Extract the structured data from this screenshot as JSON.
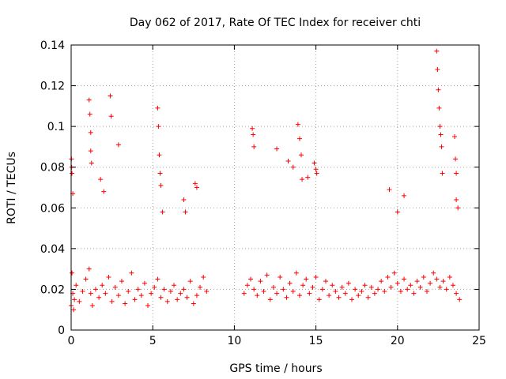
{
  "chart_data": {
    "type": "scatter",
    "title": "Day 062 of 2017, Rate Of TEC Index for receiver chti",
    "xlabel": "GPS time / hours",
    "ylabel": "ROTI / TECUs",
    "xlim": [
      0,
      25
    ],
    "ylim": [
      0,
      0.14
    ],
    "x_ticks": [
      "0",
      "5",
      "10",
      "15",
      "20",
      "25"
    ],
    "y_ticks": [
      "0",
      "0.02",
      "0.04",
      "0.06",
      "0.08",
      "0.1",
      "0.12",
      "0.14"
    ],
    "x_tick_values": [
      0,
      5,
      10,
      15,
      20,
      25
    ],
    "y_tick_values": [
      0,
      0.02,
      0.04,
      0.06,
      0.08,
      0.1,
      0.12,
      0.14
    ],
    "grid": true,
    "marker": "+",
    "color": "#ff0000",
    "series": [
      {
        "x": [
          0.0,
          0.05,
          0.1,
          0.15,
          0.2,
          0.3,
          0.5,
          0.7,
          0.9,
          1.1,
          1.2,
          1.3,
          1.5,
          1.7,
          1.9,
          2.1,
          2.3,
          2.5,
          2.7,
          2.9,
          3.1,
          3.3,
          3.5,
          3.7,
          3.9,
          4.1,
          4.3,
          4.5,
          4.7,
          4.9,
          5.1,
          5.3,
          5.5,
          5.7,
          5.9,
          6.1,
          6.3,
          6.5,
          6.7,
          6.9,
          7.1,
          7.3,
          7.5,
          7.7,
          7.9,
          8.1,
          8.3,
          10.6,
          10.8,
          11.0,
          11.2,
          11.4,
          11.6,
          11.8,
          12.0,
          12.2,
          12.4,
          12.6,
          12.8,
          13.0,
          13.2,
          13.4,
          13.6,
          13.8,
          14.0,
          14.2,
          14.4,
          14.6,
          14.8,
          15.0,
          15.2,
          15.4,
          15.6,
          15.8,
          16.0,
          16.2,
          16.4,
          16.6,
          16.8,
          17.0,
          17.2,
          17.4,
          17.6,
          17.8,
          18.0,
          18.2,
          18.4,
          18.6,
          18.8,
          19.0,
          19.2,
          19.4,
          19.6,
          19.8,
          20.0,
          20.2,
          20.4,
          20.6,
          20.8,
          21.0,
          21.2,
          21.4,
          21.6,
          21.8,
          22.0,
          22.2,
          22.4,
          22.6,
          22.8,
          23.0,
          23.2,
          23.4,
          23.6,
          23.8
        ],
        "y": [
          0.012,
          0.028,
          0.018,
          0.01,
          0.015,
          0.022,
          0.014,
          0.019,
          0.025,
          0.03,
          0.018,
          0.012,
          0.02,
          0.016,
          0.022,
          0.018,
          0.026,
          0.014,
          0.021,
          0.017,
          0.024,
          0.013,
          0.019,
          0.028,
          0.015,
          0.02,
          0.017,
          0.023,
          0.012,
          0.018,
          0.021,
          0.025,
          0.016,
          0.02,
          0.014,
          0.019,
          0.022,
          0.015,
          0.018,
          0.02,
          0.016,
          0.024,
          0.013,
          0.017,
          0.021,
          0.026,
          0.019,
          0.018,
          0.022,
          0.025,
          0.02,
          0.017,
          0.024,
          0.019,
          0.027,
          0.015,
          0.021,
          0.018,
          0.026,
          0.02,
          0.016,
          0.023,
          0.019,
          0.028,
          0.017,
          0.022,
          0.025,
          0.018,
          0.021,
          0.026,
          0.015,
          0.02,
          0.024,
          0.017,
          0.022,
          0.019,
          0.016,
          0.021,
          0.018,
          0.023,
          0.015,
          0.02,
          0.017,
          0.019,
          0.022,
          0.016,
          0.021,
          0.018,
          0.02,
          0.024,
          0.019,
          0.026,
          0.021,
          0.028,
          0.023,
          0.019,
          0.025,
          0.02,
          0.022,
          0.018,
          0.024,
          0.021,
          0.026,
          0.019,
          0.023,
          0.028,
          0.025,
          0.021,
          0.024,
          0.02,
          0.026,
          0.022,
          0.018,
          0.015
        ]
      }
    ],
    "outliers": {
      "x": [
        0.02,
        0.03,
        0.05,
        0.1,
        1.1,
        1.15,
        1.2,
        1.2,
        1.25,
        2.4,
        2.45,
        2.9,
        1.8,
        2.0,
        5.3,
        5.35,
        5.4,
        5.45,
        5.5,
        5.6,
        6.9,
        7.0,
        7.6,
        7.7,
        11.1,
        11.15,
        11.2,
        12.6,
        13.3,
        13.6,
        13.9,
        14.0,
        14.1,
        14.15,
        14.5,
        14.9,
        15.0,
        15.05,
        19.5,
        20.0,
        20.4,
        22.4,
        22.45,
        22.5,
        22.55,
        22.6,
        22.65,
        22.7,
        22.75,
        23.5,
        23.55,
        23.6,
        23.6,
        23.7
      ],
      "y": [
        0.084,
        0.08,
        0.077,
        0.067,
        0.113,
        0.106,
        0.097,
        0.088,
        0.082,
        0.115,
        0.105,
        0.091,
        0.074,
        0.068,
        0.109,
        0.1,
        0.086,
        0.077,
        0.071,
        0.058,
        0.064,
        0.058,
        0.072,
        0.07,
        0.099,
        0.096,
        0.09,
        0.089,
        0.083,
        0.08,
        0.101,
        0.094,
        0.086,
        0.074,
        0.075,
        0.082,
        0.079,
        0.077,
        0.069,
        0.058,
        0.066,
        0.137,
        0.128,
        0.118,
        0.109,
        0.1,
        0.096,
        0.09,
        0.077,
        0.095,
        0.084,
        0.077,
        0.064,
        0.06
      ]
    }
  }
}
